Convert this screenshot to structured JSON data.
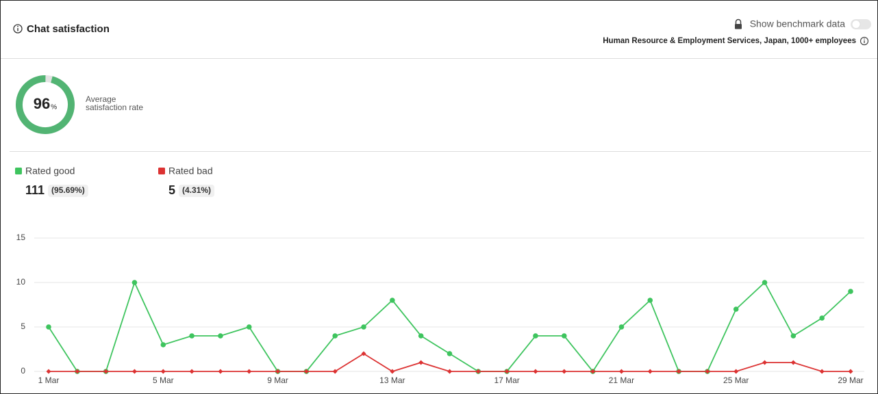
{
  "header": {
    "title": "Chat satisfaction",
    "benchmark_toggle": "Show benchmark data",
    "benchmark_segment": "Human Resource & Employment Services, Japan, 1000+ employees"
  },
  "satisfaction": {
    "value": 96,
    "unit": "%",
    "label": [
      "Average",
      "satisfaction rate"
    ]
  },
  "summary": [
    {
      "count": 111,
      "share": "(95.69%)"
    },
    {
      "count": 5,
      "share": "(4.31%)"
    }
  ],
  "chart_data": {
    "type": "line",
    "categories": [
      "1 Mar",
      null,
      null,
      null,
      "5 Mar",
      null,
      null,
      null,
      "9 Mar",
      null,
      null,
      null,
      "13 Mar",
      null,
      null,
      null,
      "17 Mar",
      null,
      null,
      null,
      "21 Mar",
      null,
      null,
      null,
      "25 Mar",
      null,
      null,
      null,
      "29 Mar"
    ],
    "series": [
      {
        "name": "Rated good",
        "color": "#3ec45e",
        "values": [
          5,
          0,
          0,
          10,
          3,
          4,
          4,
          5,
          0,
          0,
          4,
          5,
          8,
          4,
          2,
          0,
          0,
          4,
          4,
          0,
          5,
          8,
          0,
          0,
          7,
          10,
          4,
          6,
          9
        ]
      },
      {
        "name": "Rated bad",
        "color": "#dc3232",
        "values": [
          0,
          0,
          0,
          0,
          0,
          0,
          0,
          0,
          0,
          0,
          0,
          2,
          0,
          1,
          0,
          0,
          0,
          0,
          0,
          0,
          0,
          0,
          0,
          0,
          0,
          1,
          1,
          0,
          0
        ]
      }
    ],
    "ylim": [
      0,
      15
    ],
    "yticks": [
      0,
      5,
      10,
      15
    ],
    "grid": true
  }
}
